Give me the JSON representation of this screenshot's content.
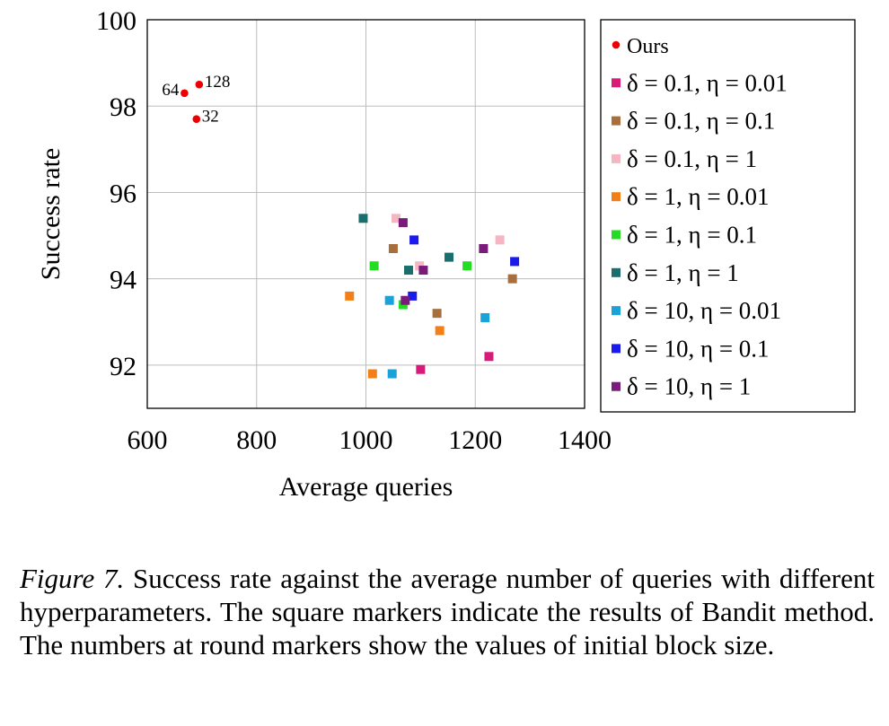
{
  "chart_data": {
    "type": "scatter",
    "xlabel": "Average queries",
    "ylabel": "Success rate",
    "xlim": [
      600,
      1400
    ],
    "ylim": [
      91,
      100
    ],
    "xticks": [
      600,
      800,
      1000,
      1200,
      1400
    ],
    "yticks": [
      92,
      94,
      96,
      98,
      100
    ],
    "grid": true,
    "legend_position": "outside-right",
    "series": [
      {
        "name": "Ours",
        "marker": "circle",
        "color": "#ee0000",
        "points": [
          {
            "x": 668,
            "y": 98.3,
            "label": "64"
          },
          {
            "x": 695,
            "y": 98.5,
            "label": "128"
          },
          {
            "x": 690,
            "y": 97.7,
            "label": "32"
          }
        ]
      },
      {
        "name": "δ = 0.1, η = 0.01",
        "marker": "square",
        "color": "#d81b7a",
        "points": [
          {
            "x": 1100,
            "y": 91.9
          },
          {
            "x": 1225,
            "y": 92.2
          }
        ]
      },
      {
        "name": "δ = 0.1, η = 0.1",
        "marker": "square",
        "color": "#a66f3d",
        "points": [
          {
            "x": 1050,
            "y": 94.7
          },
          {
            "x": 1130,
            "y": 93.2
          },
          {
            "x": 1268,
            "y": 94.0
          }
        ]
      },
      {
        "name": "δ = 0.1, η = 1",
        "marker": "square",
        "color": "#f4b6c2",
        "points": [
          {
            "x": 1055,
            "y": 95.4
          },
          {
            "x": 1098,
            "y": 94.3
          },
          {
            "x": 1245,
            "y": 94.9
          }
        ]
      },
      {
        "name": "δ = 1, η = 0.01",
        "marker": "square",
        "color": "#f57f17",
        "points": [
          {
            "x": 970,
            "y": 93.6
          },
          {
            "x": 1012,
            "y": 91.8
          },
          {
            "x": 1135,
            "y": 92.8
          }
        ]
      },
      {
        "name": "δ = 1, η = 0.1",
        "marker": "square",
        "color": "#22dd22",
        "points": [
          {
            "x": 1015,
            "y": 94.3
          },
          {
            "x": 1068,
            "y": 93.4
          },
          {
            "x": 1185,
            "y": 94.3
          }
        ]
      },
      {
        "name": "δ = 1, η = 1",
        "marker": "square",
        "color": "#1a6e6e",
        "points": [
          {
            "x": 995,
            "y": 95.4
          },
          {
            "x": 1078,
            "y": 94.2
          },
          {
            "x": 1152,
            "y": 94.5
          }
        ]
      },
      {
        "name": "δ = 10, η = 0.01",
        "marker": "square",
        "color": "#1aa3d9",
        "points": [
          {
            "x": 1043,
            "y": 93.5
          },
          {
            "x": 1048,
            "y": 91.8
          },
          {
            "x": 1218,
            "y": 93.1
          }
        ]
      },
      {
        "name": "δ = 10, η = 0.1",
        "marker": "square",
        "color": "#1a1aee",
        "points": [
          {
            "x": 1085,
            "y": 93.6
          },
          {
            "x": 1088,
            "y": 94.9
          },
          {
            "x": 1272,
            "y": 94.4
          }
        ]
      },
      {
        "name": "δ = 10, η = 1",
        "marker": "square",
        "color": "#7a1a7a",
        "points": [
          {
            "x": 1068,
            "y": 95.3
          },
          {
            "x": 1072,
            "y": 93.5
          },
          {
            "x": 1105,
            "y": 94.2
          },
          {
            "x": 1215,
            "y": 94.7
          }
        ]
      }
    ]
  },
  "caption": {
    "figure_label": "Figure 7.",
    "text": " Success rate against the average number of queries with different hyperparameters. The square markers indicate the results of Bandit method. The numbers at round markers show the values of initial block size."
  }
}
